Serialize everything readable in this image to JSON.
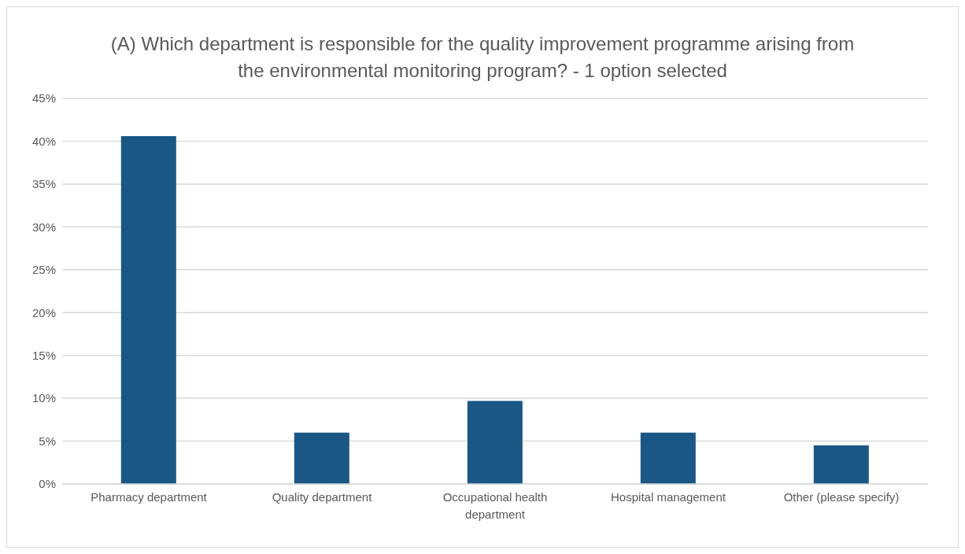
{
  "chart_data": {
    "type": "bar",
    "title": "(A) Which department is responsible for the quality improvement programme arising from the environmental monitoring program? - 1 option selected",
    "categories": [
      "Pharmacy department",
      "Quality department",
      "Occupational health department",
      "Hospital management",
      "Other (please specify)"
    ],
    "values": [
      40.6,
      6.0,
      9.7,
      6.0,
      4.5
    ],
    "color": "#1a5785",
    "ylim": [
      0,
      45
    ],
    "yticks": [
      {
        "value": 0,
        "label": "0%"
      },
      {
        "value": 5,
        "label": "5%"
      },
      {
        "value": 10,
        "label": "10%"
      },
      {
        "value": 15,
        "label": "15%"
      },
      {
        "value": 20,
        "label": "20%"
      },
      {
        "value": 25,
        "label": "25%"
      },
      {
        "value": 30,
        "label": "30%"
      },
      {
        "value": 35,
        "label": "35%"
      },
      {
        "value": 40,
        "label": "40%"
      },
      {
        "value": 45,
        "label": "45%"
      }
    ],
    "grid": "y"
  }
}
